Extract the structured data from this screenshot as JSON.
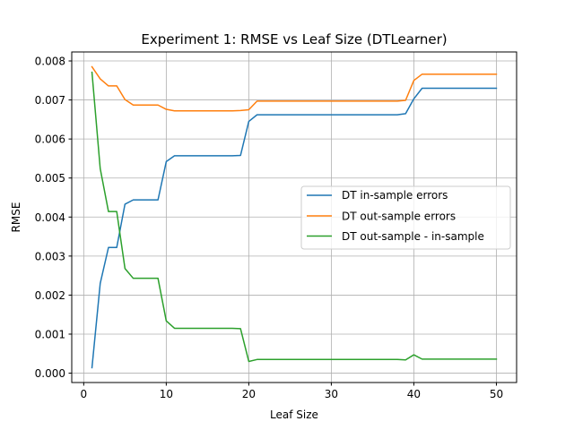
{
  "chart_data": {
    "type": "line",
    "title": "Experiment 1: RMSE vs Leaf Size (DTLearner)",
    "xlabel": "Leaf Size",
    "ylabel": "RMSE",
    "xlim": [
      -1.45,
      52.45
    ],
    "ylim": [
      -0.00024,
      0.00823
    ],
    "xticks": [
      0,
      10,
      20,
      30,
      40,
      50
    ],
    "xtick_labels": [
      "0",
      "10",
      "20",
      "30",
      "40",
      "50"
    ],
    "yticks": [
      0,
      0.001,
      0.002,
      0.003,
      0.004,
      0.005,
      0.006,
      0.007,
      0.008
    ],
    "ytick_labels": [
      "0.000",
      "0.001",
      "0.002",
      "0.003",
      "0.004",
      "0.005",
      "0.006",
      "0.007",
      "0.008"
    ],
    "grid": true,
    "legend_position": "center-right",
    "x": [
      1,
      2,
      3,
      4,
      5,
      6,
      7,
      8,
      9,
      10,
      11,
      12,
      13,
      14,
      15,
      16,
      17,
      18,
      19,
      20,
      21,
      22,
      23,
      24,
      25,
      26,
      27,
      28,
      29,
      30,
      31,
      32,
      33,
      34,
      35,
      36,
      37,
      38,
      39,
      40,
      41,
      42,
      43,
      44,
      45,
      46,
      47,
      48,
      49,
      50
    ],
    "series": [
      {
        "name": "DT in-sample errors",
        "color": "#1f77b4",
        "values": [
          0.00014,
          0.0023,
          0.00322,
          0.00322,
          0.00433,
          0.00444,
          0.00444,
          0.00444,
          0.00444,
          0.00542,
          0.00557,
          0.00557,
          0.00557,
          0.00557,
          0.00557,
          0.00557,
          0.00557,
          0.00557,
          0.00558,
          0.00645,
          0.00662,
          0.00662,
          0.00662,
          0.00662,
          0.00662,
          0.00662,
          0.00662,
          0.00662,
          0.00662,
          0.00662,
          0.00662,
          0.00662,
          0.00662,
          0.00662,
          0.00662,
          0.00662,
          0.00662,
          0.00662,
          0.00665,
          0.00703,
          0.0073,
          0.0073,
          0.0073,
          0.0073,
          0.0073,
          0.0073,
          0.0073,
          0.0073,
          0.0073,
          0.0073
        ]
      },
      {
        "name": "DT out-sample errors",
        "color": "#ff7f0e",
        "values": [
          0.00785,
          0.00754,
          0.00736,
          0.00736,
          0.00701,
          0.00687,
          0.00687,
          0.00687,
          0.00687,
          0.00676,
          0.00672,
          0.00672,
          0.00672,
          0.00672,
          0.00672,
          0.00672,
          0.00672,
          0.00672,
          0.00673,
          0.00675,
          0.00697,
          0.00697,
          0.00697,
          0.00697,
          0.00697,
          0.00697,
          0.00697,
          0.00697,
          0.00697,
          0.00697,
          0.00697,
          0.00697,
          0.00697,
          0.00697,
          0.00697,
          0.00697,
          0.00697,
          0.00697,
          0.00699,
          0.0075,
          0.00766,
          0.00766,
          0.00766,
          0.00766,
          0.00766,
          0.00766,
          0.00766,
          0.00766,
          0.00766,
          0.00766
        ]
      },
      {
        "name": "DT out-sample - in-sample",
        "color": "#2ca02c",
        "values": [
          0.00771,
          0.00524,
          0.00414,
          0.00414,
          0.00268,
          0.00243,
          0.00243,
          0.00243,
          0.00243,
          0.00134,
          0.00115,
          0.00115,
          0.00115,
          0.00115,
          0.00115,
          0.00115,
          0.00115,
          0.00115,
          0.00114,
          0.0003,
          0.00035,
          0.00035,
          0.00035,
          0.00035,
          0.00035,
          0.00035,
          0.00035,
          0.00035,
          0.00035,
          0.00035,
          0.00035,
          0.00035,
          0.00035,
          0.00035,
          0.00035,
          0.00035,
          0.00035,
          0.00035,
          0.00034,
          0.00047,
          0.00036,
          0.00036,
          0.00036,
          0.00036,
          0.00036,
          0.00036,
          0.00036,
          0.00036,
          0.00036,
          0.00036
        ]
      }
    ]
  }
}
